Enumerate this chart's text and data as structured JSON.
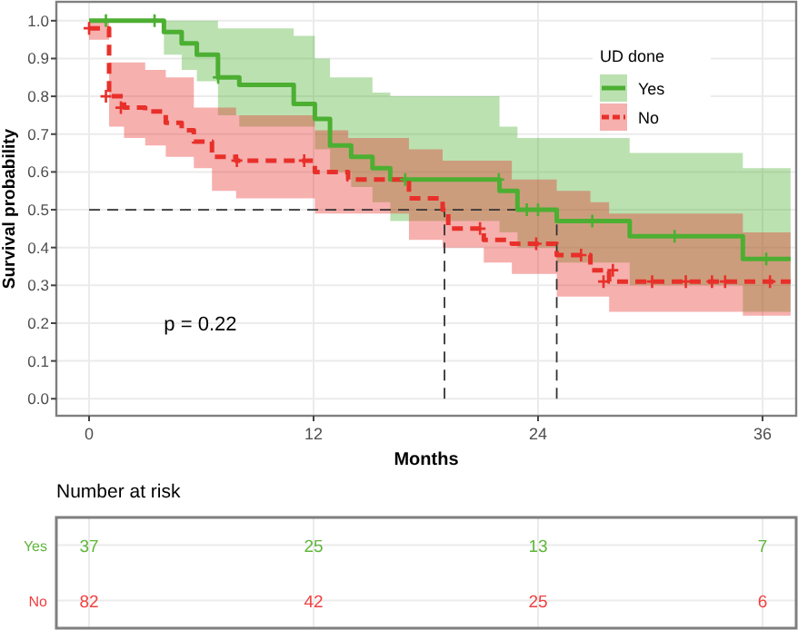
{
  "chart_data": [
    {
      "type": "step",
      "xlabel": "Months",
      "ylabel": "Survival probability",
      "legend_title": "UD done",
      "legend": "top right",
      "grid": true,
      "xlim": [
        -1.75,
        37.8
      ],
      "ylim": [
        -0.045,
        1.05
      ],
      "xticks": [
        0,
        12,
        24,
        36
      ],
      "yticks": [
        {
          "value": 0,
          "label": "0.0"
        },
        {
          "value": 0.1,
          "label": "0.1"
        },
        {
          "value": 0.2,
          "label": "0.2"
        },
        {
          "value": 0.3,
          "label": "0.3"
        },
        {
          "value": 0.4,
          "label": "0.4"
        },
        {
          "value": 0.5,
          "label": "0.5"
        },
        {
          "value": 0.6,
          "label": "0.6"
        },
        {
          "value": 0.7,
          "label": "0.7"
        },
        {
          "value": 0.8,
          "label": "0.8"
        },
        {
          "value": 0.9,
          "label": "0.9"
        },
        {
          "value": 1,
          "label": "1.0"
        }
      ],
      "series": [
        {
          "name": "Yes",
          "color": "#4caf32",
          "line_style": "solid",
          "x": [
            0,
            4.0,
            4.95,
            5.76,
            6.89,
            8.03,
            10.94,
            12.07,
            12.88,
            14.01,
            15.15,
            16.1,
            21.94,
            22.9,
            25.0,
            28.9,
            34.95,
            37.5
          ],
          "values": [
            1.0,
            0.97,
            0.94,
            0.91,
            0.85,
            0.83,
            0.78,
            0.74,
            0.67,
            0.64,
            0.61,
            0.58,
            0.55,
            0.5,
            0.47,
            0.43,
            0.37,
            0.37
          ],
          "upper": [
            1.0,
            1.0,
            1.0,
            1.0,
            0.98,
            0.98,
            0.96,
            0.9,
            0.85,
            0.85,
            0.81,
            0.8,
            0.72,
            0.69,
            0.69,
            0.65,
            0.61,
            0.61
          ],
          "lower": [
            1.0,
            0.91,
            0.87,
            0.84,
            0.75,
            0.72,
            0.72,
            0.66,
            0.6,
            0.56,
            0.52,
            0.47,
            0.44,
            0.4,
            0.36,
            0.3,
            0.23,
            0.23
          ]
        },
        {
          "name": "No",
          "color": "#e8302a",
          "line_style": "dashed",
          "x": [
            0,
            1.07,
            1.87,
            3.0,
            4.1,
            4.95,
            5.6,
            6.57,
            7.86,
            12.07,
            13.85,
            17.1,
            18.9,
            19.2,
            21.1,
            22.6,
            25.0,
            26.8,
            27.8,
            34.95,
            37.5
          ],
          "values": [
            0.98,
            0.8,
            0.77,
            0.76,
            0.73,
            0.71,
            0.68,
            0.64,
            0.63,
            0.6,
            0.58,
            0.53,
            0.5,
            0.45,
            0.42,
            0.41,
            0.38,
            0.34,
            0.31,
            0.31,
            0.31
          ],
          "upper": [
            1.0,
            0.89,
            0.89,
            0.87,
            0.85,
            0.85,
            0.77,
            0.77,
            0.75,
            0.71,
            0.69,
            0.66,
            0.63,
            0.63,
            0.63,
            0.58,
            0.55,
            0.52,
            0.49,
            0.44,
            0.44
          ],
          "lower": [
            0.95,
            0.72,
            0.69,
            0.67,
            0.64,
            0.64,
            0.61,
            0.55,
            0.53,
            0.49,
            0.49,
            0.42,
            0.4,
            0.4,
            0.36,
            0.33,
            0.27,
            0.27,
            0.23,
            0.22,
            0.22
          ]
        },
        {
          "type": "scatter",
          "marker": "cross",
          "color": "#4caf32",
          "x": [
            0.9,
            3.5,
            6.9,
            16.9,
            21.9,
            23.4,
            24.0,
            26.9,
            31.3,
            36.2
          ],
          "values": [
            1.0,
            1.0,
            0.85,
            0.58,
            0.58,
            0.5,
            0.5,
            0.47,
            0.43,
            0.37
          ]
        },
        {
          "type": "scatter",
          "marker": "cross",
          "color": "#e8302a",
          "x": [
            0,
            0.9,
            1.7,
            7.9,
            11.5,
            20.9,
            23.9,
            26.3,
            28.0,
            27.5,
            30.1,
            31.9,
            33.3,
            34.0,
            36.4
          ],
          "values": [
            0.98,
            0.8,
            0.77,
            0.63,
            0.63,
            0.45,
            0.41,
            0.38,
            0.34,
            0.31,
            0.31,
            0.31,
            0.31,
            0.31,
            0.31
          ]
        }
      ],
      "ref_lines": [
        {
          "axis": "y",
          "value": 0.5,
          "line_style": "dashed",
          "color": "#333333"
        },
        {
          "axis": "x",
          "value": 19.0,
          "line_style": "dashed",
          "color": "#333333"
        },
        {
          "axis": "x",
          "value": 25.0,
          "line_style": "dashed",
          "color": "#333333"
        }
      ],
      "annotations": [
        "p = 0.22"
      ]
    },
    {
      "type": "heatmap",
      "title": "Number at risk",
      "x": [
        0,
        12,
        24,
        36
      ],
      "xlim": [
        -1.75,
        37.8
      ],
      "tick_labels": "y",
      "grid": true,
      "data_labels": true,
      "y_categories": [
        "Yes",
        "No"
      ],
      "colors": [
        "#5fb63a",
        "#f04040"
      ],
      "cells": [
        [
          37,
          25,
          13,
          7
        ],
        [
          82,
          42,
          25,
          6
        ]
      ]
    }
  ]
}
